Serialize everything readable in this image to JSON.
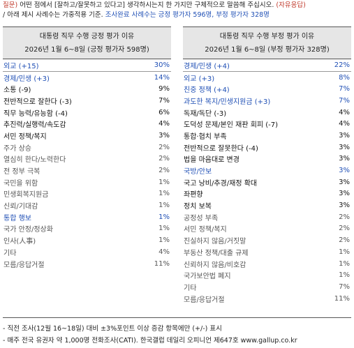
{
  "question": {
    "line1": "질문) 어떤 점에서 [잘하고/잘못하고 있다고] 생각하시는지 한 가지만 구체적으로 말씀해 주십시오. (자유응답)",
    "line2": "/ 아래 제시 사례수는 가중적용 기준. 조사완료 사례수는 긍정 평가자 596명, 부정 평가자 328명"
  },
  "positive": {
    "title": "대통령 직무 수행 긍정 평가 이유",
    "subtitle": "2026년 1월 6~8일 (긍정 평가자 598명)",
    "rows": [
      {
        "label": "외교 (+15)",
        "value": "30%"
      },
      {
        "label": "경제/민생 (+3)",
        "value": "14%"
      },
      {
        "label": "소통 (-9)",
        "value": "9%"
      },
      {
        "label": "전반적으로 잘한다 (-3)",
        "value": "7%"
      },
      {
        "label": "직무 능력/유능함 (-4)",
        "value": "6%"
      },
      {
        "label": "추진력/실행력/속도감",
        "value": "4%"
      },
      {
        "label": "서민 정책/복지",
        "value": "3%"
      },
      {
        "label": "주가 상승",
        "value": "2%"
      },
      {
        "label": "열심히 한다/노력한다",
        "value": "2%"
      },
      {
        "label": "전 정부 극복",
        "value": "2%"
      },
      {
        "label": "국민을 위함",
        "value": "1%"
      },
      {
        "label": "민생회복지원금",
        "value": "1%"
      },
      {
        "label": "신뢰/기대감",
        "value": "1%"
      },
      {
        "label": "통합 행보",
        "value": "1%"
      },
      {
        "label": "국가 안정/정상화",
        "value": "1%"
      },
      {
        "label": "인사(人事)",
        "value": "1%"
      },
      {
        "label": "기타",
        "value": "4%"
      },
      {
        "label": "모름/응답거절",
        "value": "11%"
      }
    ]
  },
  "negative": {
    "title": "대통령 직무 수행 부정 평가 이유",
    "subtitle": "2026년 1월 6~8일 (부정 평가자 328명)",
    "rows": [
      {
        "label": "경제/민생 (+4)",
        "value": "22%"
      },
      {
        "label": "외교 (+3)",
        "value": "8%"
      },
      {
        "label": "친중 정책 (+4)",
        "value": "7%"
      },
      {
        "label": "과도한 복지/민생지원금 (+3)",
        "value": "7%"
      },
      {
        "label": "독재/독단 (-3)",
        "value": "4%"
      },
      {
        "label": "도덕성 문제/본인 재판 회피 (-7)",
        "value": "4%"
      },
      {
        "label": "통합·협치 부족",
        "value": "3%"
      },
      {
        "label": "전반적으로 잘못한다 (-4)",
        "value": "3%"
      },
      {
        "label": "법을 마음대로 변경",
        "value": "3%"
      },
      {
        "label": "국방/안보",
        "value": "3%"
      },
      {
        "label": "국고 낭비/추경/재정 확대",
        "value": "3%"
      },
      {
        "label": "좌편향",
        "value": "3%"
      },
      {
        "label": "정치 보복",
        "value": "3%"
      },
      {
        "label": "공정성 부족",
        "value": "2%"
      },
      {
        "label": "서민 정책/복지",
        "value": "2%"
      },
      {
        "label": "진실하지 않음/거짓말",
        "value": "2%"
      },
      {
        "label": "부동산 정책/대출 규제",
        "value": "1%"
      },
      {
        "label": "신뢰하지 않음/비호감",
        "value": "1%"
      },
      {
        "label": "국가보안법 폐지",
        "value": "1%"
      },
      {
        "label": "기타",
        "value": "7%"
      },
      {
        "label": "모름/응답거절",
        "value": "11%"
      }
    ]
  },
  "footnotes": {
    "note1": "- 직전 조사(12월 16~18일) 대비 ±3%포인트 이상 증감 항목에만 (+/-) 표시",
    "note2": "- 매주 전국 유권자 약 1,000명 전화조사(CATI). 한국갤럽 데일리 오피니언 제647호 www.gallup.co.kr"
  },
  "colors": {
    "accent_red": "#c0392b",
    "accent_blue": "#1f4fb5",
    "header_bg": "#e6e6e6"
  }
}
